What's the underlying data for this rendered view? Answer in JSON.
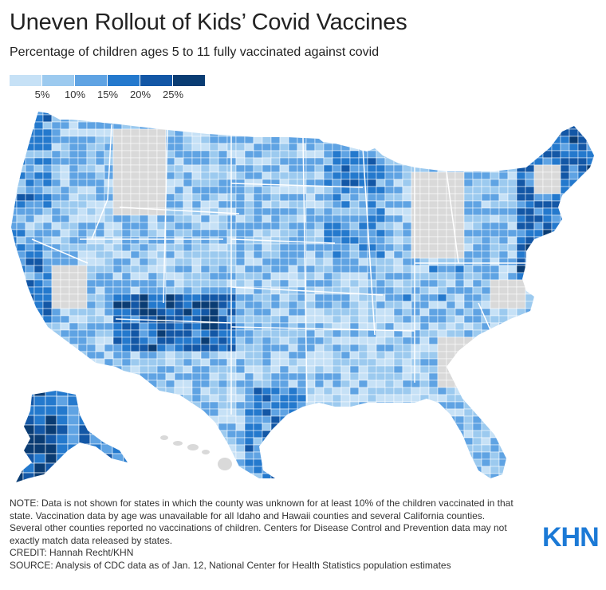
{
  "header": {
    "title": "Uneven Rollout of Kids’ Covid Vaccines",
    "subtitle": "Percentage of children ages 5 to 11 fully vaccinated against covid"
  },
  "legend": {
    "colors": [
      "#c6e1f6",
      "#9ccaef",
      "#5fa3e3",
      "#2479cd",
      "#1357a6",
      "#0a3c73"
    ],
    "labels": [
      "5%",
      "10%",
      "15%",
      "20%",
      "25%"
    ]
  },
  "no_data_color": "#d9d9d9",
  "notes": {
    "note": "NOTE: Data is not shown for states in which the county was unknown for at least 10% of the children vaccinated in that state. Vaccination data by age was unavailable for all Idaho and Hawaii counties and several California counties. Several other counties reported no vaccinations of children. Centers for Disease Control and Prevention data may not exactly match data released by states.",
    "credit": "CREDIT: Hannah Recht/KHN",
    "source": "SOURCE: Analysis of CDC data as of Jan. 12, National Center for Health Statistics population estimates"
  },
  "logo": {
    "text": "KHN"
  }
}
